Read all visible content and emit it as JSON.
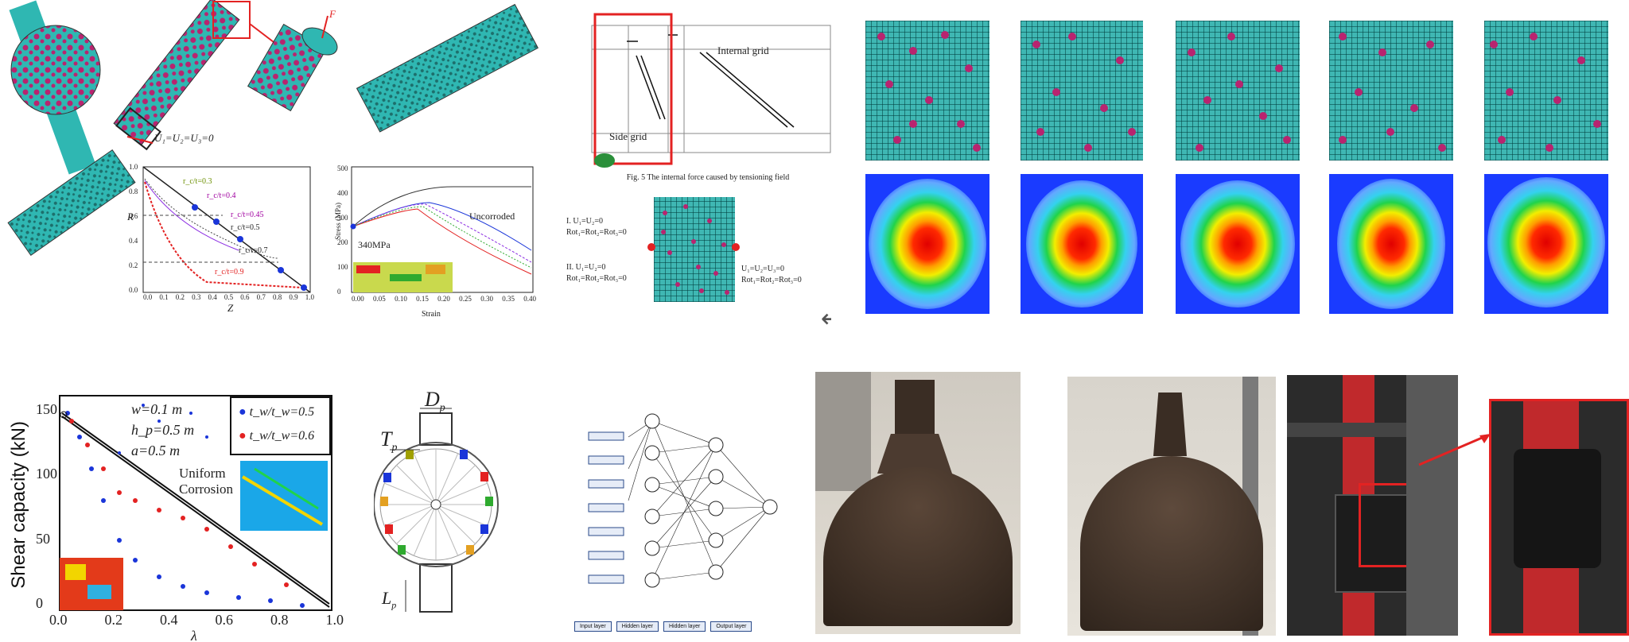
{
  "colors": {
    "teal": "#2fb7b2",
    "magenta": "#b8246f",
    "red": "#e32222",
    "blue": "#1a35d9",
    "contour_bg": "#1a3bff"
  },
  "top_left": {
    "force_label": "F",
    "boundary_label": "U₁=U₂=U₃=0",
    "curve_plot": {
      "ylabel": "R",
      "xlabel": "Z",
      "ytick_labels": [
        "1.0",
        "0.8",
        "0.6",
        "0.4",
        "0.2",
        "0.0"
      ],
      "xtick_labels": [
        "0.0",
        "0.1",
        "0.2",
        "0.3",
        "0.4",
        "0.5",
        "0.6",
        "0.7",
        "0.8",
        "0.9",
        "1.0"
      ],
      "legend": [
        "r_c/t=0.3",
        "r_c/t=0.4",
        "r_c/t=0.45",
        "r_c/t=0.5",
        "r_c/t=0.7",
        "r_c/t=0.9"
      ]
    },
    "stress_plot": {
      "ylabel": "Stress (MPa)",
      "xlabel": "Strain",
      "ytick_labels": [
        "500",
        "400",
        "300",
        "200",
        "100",
        "0"
      ],
      "xtick_labels": [
        "0.00",
        "0.05",
        "0.10",
        "0.15",
        "0.20",
        "0.25",
        "0.30",
        "0.35",
        "0.40"
      ],
      "annotation_uncorroded": "Uncorroded",
      "annotation_value": "340MPa"
    }
  },
  "top_middle": {
    "grid_labels": [
      "Internal grid",
      "Side grid"
    ],
    "caption": "Fig. 5 The internal force caused by tensioning field",
    "boundary_i": "I. U₁=U₂=0",
    "boundary_i2": "Rot₁=Rot₂=Rot₃=0",
    "boundary_ii": "II. U₁=U₂=0",
    "boundary_ii2": "Rot₁=Rot₂=Rot₃=0",
    "boundary_right": "U₁=U₂=U₃=0",
    "boundary_right2": "Rot₁=Rot₂=Rot₃=0",
    "return_symbol": "↲"
  },
  "shear_plot": {
    "ylabel": "Shear capacity (kN)",
    "ytick_labels": [
      "150",
      "100",
      "50",
      "0"
    ],
    "xtick_labels": [
      "0.0",
      "0.2",
      "0.4",
      "0.6",
      "0.8",
      "1.0"
    ],
    "xlabel": "λ",
    "params": [
      "w=0.1 m",
      "h_p=0.5 m",
      "a=0.5 m"
    ],
    "legend": [
      "t_w/t_w=0.5",
      "t_w/t_w=0.6"
    ],
    "annotation": "Uniform corrosion",
    "annotation_line1": "Uniform",
    "annotation_line2": "Corrosion"
  },
  "ring": {
    "dp_label": "D",
    "dp_sub": "p",
    "tp_label": "T",
    "tp_sub": "p",
    "lp_label": "L",
    "lp_sub": "p"
  },
  "nn": {
    "bottom_boxes": [
      "Input layer",
      "Hidden layer",
      "Hidden layer",
      "Output layer"
    ]
  }
}
